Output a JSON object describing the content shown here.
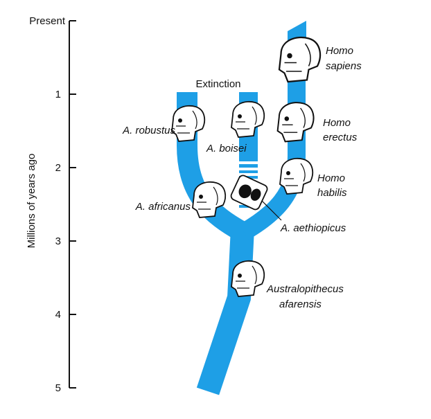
{
  "axis": {
    "label": "Millions of years ago",
    "ticks": [
      "Present",
      "1",
      "2",
      "3",
      "4",
      "5"
    ]
  },
  "colors": {
    "lineage": "#1e9fe6",
    "axis": "#111111"
  },
  "extinction_label": "Extinction",
  "species": {
    "homo_sapiens": [
      "Homo",
      "sapiens"
    ],
    "homo_erectus": [
      "Homo",
      "erectus"
    ],
    "homo_habilis": [
      "Homo",
      "habilis"
    ],
    "a_robustus": "A. robustus",
    "a_boisei": "A. boisei",
    "a_africanus": "A. africanus",
    "a_aethiopicus": "A. aethiopicus",
    "australopithecus_afarensis": [
      "Australopithecus",
      "afarensis"
    ]
  }
}
